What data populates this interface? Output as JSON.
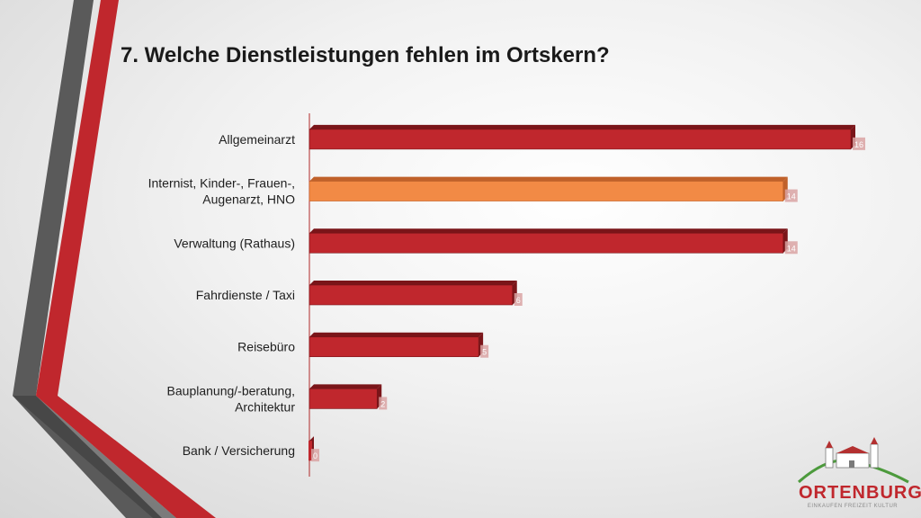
{
  "slide": {
    "title": "7. Welche Dienstleistungen fehlen im Ortskern?"
  },
  "colors": {
    "bar": "#c0272d",
    "bar_dark": "#7a1519",
    "bar_highlight": "#f28a45",
    "bar_highlight_dark": "#c0612a",
    "axis": "#b02a2a"
  },
  "chart_data": {
    "type": "bar",
    "orientation": "horizontal",
    "title": "7. Welche Dienstleistungen fehlen im Ortskern?",
    "xlabel": "",
    "ylabel": "",
    "xlim": [
      0,
      16
    ],
    "grid": false,
    "categories": [
      [
        "Allgemeinarzt"
      ],
      [
        "Internist, Kinder-, Frauen-,",
        "Augenarzt, HNO"
      ],
      [
        "Verwaltung (Rathaus)"
      ],
      [
        "Fahrdienste / Taxi"
      ],
      [
        "Reisebüro"
      ],
      [
        "Bauplanung/-beratung,",
        "Architektur"
      ],
      [
        "Bank / Versicherung"
      ]
    ],
    "values": [
      16,
      14,
      14,
      6,
      5,
      2,
      0
    ],
    "highlight": [
      false,
      true,
      false,
      false,
      false,
      false,
      false
    ]
  },
  "logo": {
    "name": "ORTENBURG",
    "tagline": "EINKAUFEN FREIZEIT KULTUR"
  }
}
